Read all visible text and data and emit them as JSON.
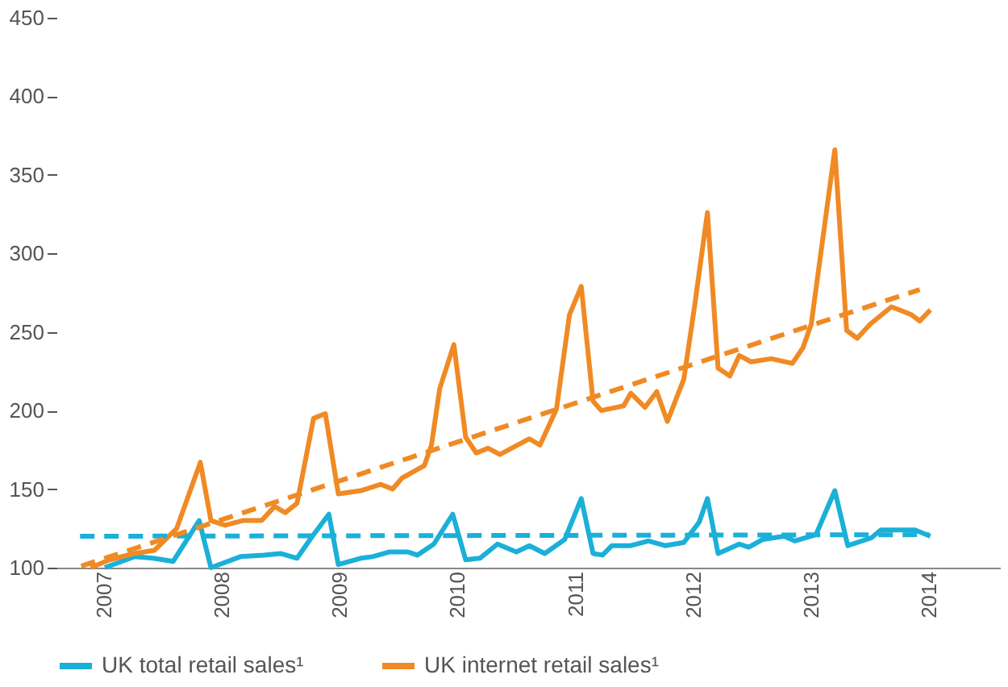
{
  "chart_data": {
    "type": "line",
    "xlim": [
      2006.6,
      2014.6
    ],
    "xticks": [
      2007,
      2008,
      2009,
      2010,
      2011,
      2012,
      2013,
      2014
    ],
    "ylim": [
      100,
      450
    ],
    "yticks": [
      100,
      150,
      200,
      250,
      300,
      350,
      400,
      450
    ],
    "grid": false,
    "legend": "bottom",
    "marker": "none",
    "series": [
      {
        "name": "UK total retail sales¹",
        "color": "#1ab0d8",
        "line_style": "solid",
        "x": [
          2007.01,
          2007.26,
          2007.42,
          2007.59,
          2007.81,
          2007.91,
          2008.16,
          2008.36,
          2008.5,
          2008.64,
          2008.77,
          2008.91,
          2008.99,
          2009.18,
          2009.28,
          2009.42,
          2009.58,
          2009.66,
          2009.8,
          2009.96,
          2010.07,
          2010.19,
          2010.34,
          2010.5,
          2010.61,
          2010.74,
          2010.91,
          2011.05,
          2011.15,
          2011.23,
          2011.31,
          2011.47,
          2011.62,
          2011.76,
          2011.92,
          2012.05,
          2012.12,
          2012.21,
          2012.39,
          2012.47,
          2012.59,
          2012.77,
          2012.86,
          2013.04,
          2013.2,
          2013.31,
          2013.51,
          2013.59,
          2013.88,
          2014.01
        ],
        "values": [
          100,
          107,
          106,
          104,
          130,
          100,
          107,
          108,
          109,
          106,
          120,
          134,
          102,
          106,
          107,
          110,
          110,
          108,
          115,
          134,
          105,
          106,
          115,
          110,
          114,
          109,
          118,
          144,
          109,
          108,
          114,
          114,
          117,
          114,
          116,
          129,
          144,
          109,
          115,
          113,
          118,
          120,
          117,
          121,
          149,
          114,
          119,
          124,
          124,
          120
        ]
      },
      {
        "name": "UK internet retail sales¹",
        "color": "#f08a24",
        "line_style": "solid",
        "x": [
          2006.89,
          2007.05,
          2007.26,
          2007.43,
          2007.62,
          2007.82,
          2007.91,
          2008.03,
          2008.18,
          2008.34,
          2008.45,
          2008.54,
          2008.64,
          2008.78,
          2008.88,
          2008.99,
          2009.18,
          2009.35,
          2009.45,
          2009.53,
          2009.72,
          2009.78,
          2009.85,
          2009.97,
          2010.07,
          2010.16,
          2010.26,
          2010.36,
          2010.61,
          2010.7,
          2010.84,
          2010.95,
          2011.05,
          2011.15,
          2011.22,
          2011.41,
          2011.47,
          2011.59,
          2011.69,
          2011.78,
          2011.92,
          2012.01,
          2012.12,
          2012.21,
          2012.31,
          2012.39,
          2012.49,
          2012.66,
          2012.84,
          2012.93,
          2013.0,
          2013.2,
          2013.3,
          2013.39,
          2013.5,
          2013.68,
          2013.85,
          2013.92,
          2014.01
        ],
        "values": [
          100,
          105,
          109,
          111,
          125,
          167,
          130,
          127,
          130,
          130,
          139,
          135,
          141,
          195,
          198,
          147,
          149,
          153,
          150,
          157,
          165,
          178,
          214,
          242,
          183,
          173,
          176,
          172,
          182,
          178,
          201,
          261,
          279,
          206,
          200,
          203,
          211,
          202,
          212,
          193,
          220,
          266,
          326,
          227,
          222,
          235,
          231,
          233,
          230,
          240,
          255,
          366,
          251,
          246,
          255,
          266,
          261,
          257,
          264
        ]
      },
      {
        "color": "#1ab0d8",
        "line_style": "dashed",
        "x": [
          2006.8,
          2014.0
        ],
        "values": [
          120,
          121
        ]
      },
      {
        "color": "#f08a24",
        "line_style": "dashed",
        "x": [
          2006.81,
          2013.92
        ],
        "values": [
          101,
          277
        ]
      }
    ]
  }
}
